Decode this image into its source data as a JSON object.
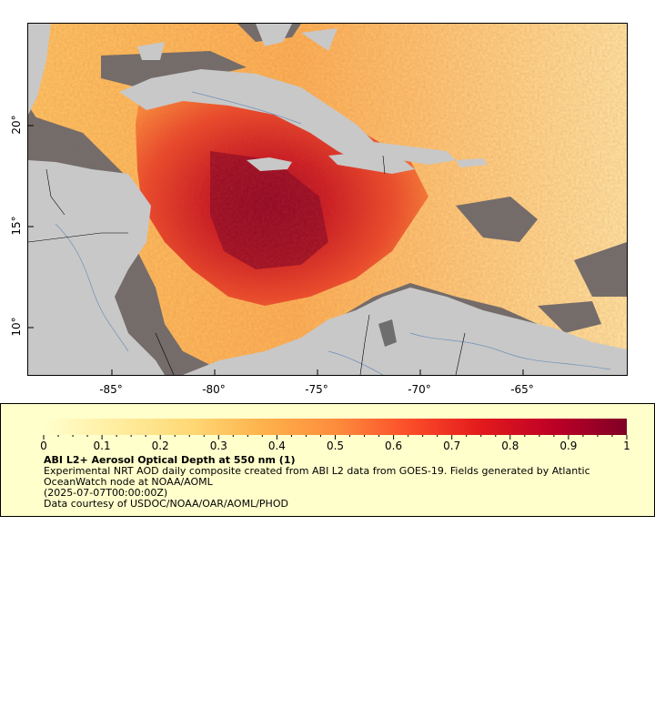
{
  "map": {
    "x_ticks": [
      "-85°",
      "-80°",
      "-75°",
      "-70°",
      "-65°"
    ],
    "y_ticks": [
      "20°",
      "15°",
      "10°"
    ],
    "colors": {
      "no_data": "#6e6e6e",
      "land": "#c8c8c8",
      "rivers": "#6f8fb8",
      "borders": "#000000"
    }
  },
  "legend": {
    "tick_labels": [
      "0",
      "0.1",
      "0.2",
      "0.3",
      "0.4",
      "0.5",
      "0.6",
      "0.7",
      "0.8",
      "0.9",
      "1"
    ],
    "title": "ABI L2+ Aerosol Optical Depth at 550 nm (1)",
    "description": "Experimental NRT AOD daily composite created from ABI L2 data from GOES-19. Fields generated by Atlantic OceanWatch node at NOAA/AOML",
    "date": "(2025-07-07T00:00:00Z)",
    "credit": "Data courtesy of USDOC/NOAA/OAR/AOML/PHOD",
    "colormap": [
      "#ffffcc",
      "#ffeda0",
      "#fed976",
      "#feb24c",
      "#fd8d3c",
      "#fc4e2a",
      "#e31a1c",
      "#bd0026",
      "#800026"
    ],
    "range": [
      0,
      1
    ]
  }
}
